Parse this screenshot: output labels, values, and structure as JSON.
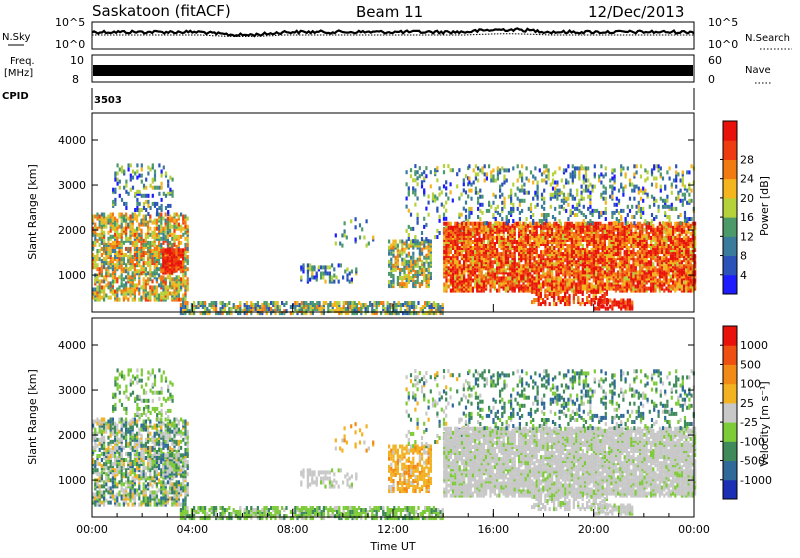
{
  "header": {
    "station": "Saskatoon (fitACF)",
    "beam": "Beam 11",
    "date": "12/Dec/2013"
  },
  "top_panels": {
    "nsky_label": "N.Sky",
    "nsearch_label": "N.Search",
    "nsky_ticks": [
      "10^5",
      "10^0"
    ],
    "nsearch_ticks": [
      "10^5",
      "10^0"
    ],
    "freq_label": "Freq.",
    "freq_unit": "[MHz]",
    "freq_ticks": [
      "10",
      "8"
    ],
    "nave_label": "Nave",
    "nave_ticks": [
      "60",
      "0"
    ],
    "cpid_label": "CPID",
    "cpid_value": "3503"
  },
  "chart_data": [
    {
      "type": "heatmap",
      "name": "power",
      "ylabel": "Slant Range [km]",
      "ylim": [
        180,
        4600
      ],
      "yticks": [
        1000,
        2000,
        3000,
        4000
      ],
      "colorbar": {
        "label": "Power [dB]",
        "ticks": [
          "4",
          "8",
          "12",
          "16",
          "20",
          "24",
          "28"
        ],
        "colors": [
          "#1c1cff",
          "#2a52b8",
          "#3a7a9a",
          "#4c9a6a",
          "#b6d23a",
          "#f5b51e",
          "#f27a12",
          "#ee3b0f",
          "#e8120a"
        ]
      }
    },
    {
      "type": "heatmap",
      "name": "velocity",
      "ylabel": "Slant Range [km]",
      "xlabel": "Time UT",
      "ylim": [
        180,
        4600
      ],
      "yticks": [
        1000,
        2000,
        3000,
        4000
      ],
      "xticks": [
        "00:00",
        "04:00",
        "08:00",
        "12:00",
        "16:00",
        "20:00",
        "00:00"
      ],
      "colorbar": {
        "label": "Velocity [m s⁻¹]",
        "ticks": [
          "1000",
          "500",
          "100",
          "25",
          "-25",
          "-100",
          "-500",
          "-1000"
        ],
        "colors": [
          "#1a2fb4",
          "#2d6a9a",
          "#3f8a5a",
          "#7ecb3a",
          "#c8c8c8",
          "#f2b222",
          "#f28a18",
          "#ee5012",
          "#e8120a"
        ]
      }
    }
  ]
}
